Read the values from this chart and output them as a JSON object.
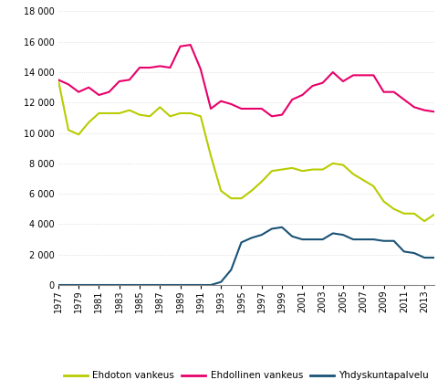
{
  "years": [
    1977,
    1978,
    1979,
    1980,
    1981,
    1982,
    1983,
    1984,
    1985,
    1986,
    1987,
    1988,
    1989,
    1990,
    1991,
    1992,
    1993,
    1994,
    1995,
    1996,
    1997,
    1998,
    1999,
    2000,
    2001,
    2002,
    2003,
    2004,
    2005,
    2006,
    2007,
    2008,
    2009,
    2010,
    2011,
    2012,
    2013,
    2014
  ],
  "ehdoton": [
    13500,
    10200,
    9900,
    10700,
    11300,
    11300,
    11300,
    11500,
    11200,
    11100,
    11700,
    11100,
    11300,
    11300,
    11100,
    8500,
    6200,
    5700,
    5700,
    6200,
    6800,
    7500,
    7600,
    7700,
    7500,
    7600,
    7600,
    8000,
    7900,
    7300,
    6900,
    6500,
    5500,
    5000,
    4700,
    4700,
    4200,
    4650
  ],
  "ehdollinen": [
    13500,
    13200,
    12700,
    13000,
    12500,
    12700,
    13400,
    13500,
    14300,
    14300,
    14400,
    14300,
    15700,
    15800,
    14200,
    11600,
    12100,
    11900,
    11600,
    11600,
    11600,
    11100,
    11200,
    12200,
    12500,
    13100,
    13300,
    14000,
    13400,
    13800,
    13800,
    13800,
    12700,
    12700,
    12200,
    11700,
    11500,
    11400
  ],
  "yhdyskuntapalvelu": [
    0,
    0,
    0,
    0,
    0,
    0,
    0,
    0,
    0,
    0,
    0,
    0,
    0,
    0,
    0,
    0,
    200,
    1000,
    2800,
    3100,
    3300,
    3700,
    3800,
    3200,
    3000,
    3000,
    3000,
    3400,
    3300,
    3000,
    3000,
    3000,
    2900,
    2900,
    2200,
    2100,
    1800,
    1800
  ],
  "ehdoton_color": "#b8cc00",
  "ehdollinen_color": "#e8006a",
  "yhdyskuntapalvelu_color": "#1a5276",
  "ylim": [
    0,
    18000
  ],
  "yticks": [
    0,
    2000,
    4000,
    6000,
    8000,
    10000,
    12000,
    14000,
    16000,
    18000
  ],
  "legend_labels": [
    "Ehdoton vankeus",
    "Ehdollinen vankeus",
    "Yhdyskuntapalvelu"
  ],
  "background_color": "#ffffff",
  "grid_color": "#cccccc",
  "linewidth": 1.5
}
